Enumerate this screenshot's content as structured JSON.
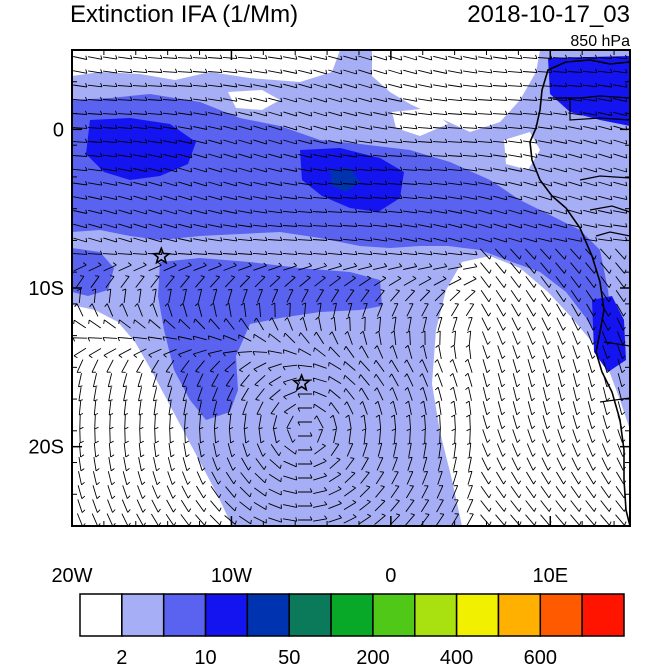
{
  "header": {
    "title": "Extinction IFA (1/Mm)",
    "datetime": "2018-10-17_03",
    "level": "850 hPa"
  },
  "map": {
    "lon_range": [
      -20,
      15
    ],
    "lat_range": [
      -25,
      5
    ],
    "x_ticks": [
      {
        "lon": -20,
        "label": "20W"
      },
      {
        "lon": -10,
        "label": "10W"
      },
      {
        "lon": 0,
        "label": "0"
      },
      {
        "lon": 10,
        "label": "10E"
      }
    ],
    "y_ticks": [
      {
        "lat": 0,
        "label": "0"
      },
      {
        "lat": -10,
        "label": "10S"
      },
      {
        "lat": -20,
        "label": "20S"
      }
    ],
    "markers": [
      {
        "type": "star",
        "lon": -14.4,
        "lat": -8.0
      },
      {
        "type": "star",
        "lon": -5.6,
        "lat": -16.0
      }
    ]
  },
  "colorbar": {
    "colors": [
      "#ffffff",
      "#a6aff5",
      "#5a62f0",
      "#1414f0",
      "#0033b0",
      "#0b7a5a",
      "#08a828",
      "#50c818",
      "#a8e010",
      "#f0f000",
      "#ffb000",
      "#ff5a00",
      "#ff1400"
    ],
    "labels": [
      {
        "boundary": 1,
        "text": "2"
      },
      {
        "boundary": 3,
        "text": "10"
      },
      {
        "boundary": 5,
        "text": "50"
      },
      {
        "boundary": 7,
        "text": "200"
      },
      {
        "boundary": 9,
        "text": "400"
      },
      {
        "boundary": 11,
        "text": "600"
      }
    ]
  }
}
